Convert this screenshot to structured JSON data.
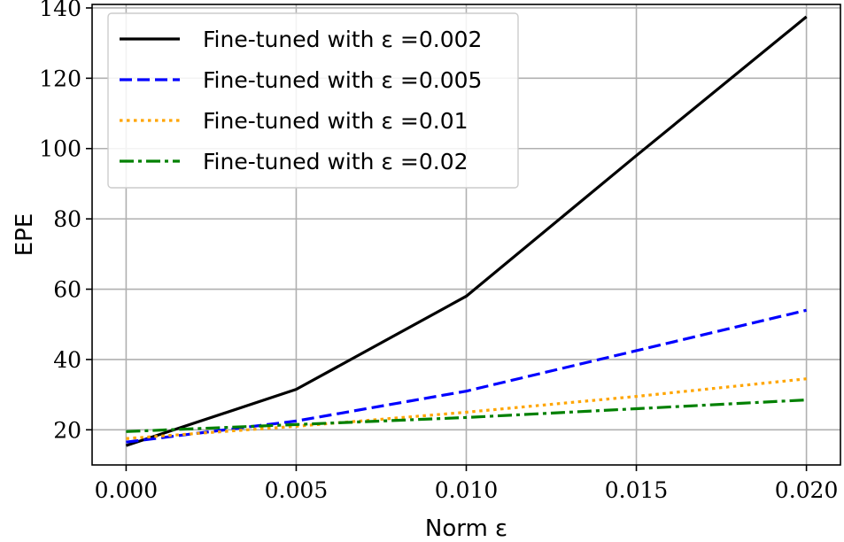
{
  "chart_data": {
    "type": "line",
    "xlabel": "Norm ε",
    "ylabel": "EPE",
    "x": [
      0.0,
      0.005,
      0.01,
      0.015,
      0.02
    ],
    "xlim": [
      -0.001,
      0.021
    ],
    "ylim": [
      10,
      141
    ],
    "xticks": [
      0.0,
      0.005,
      0.01,
      0.015,
      0.02
    ],
    "xtick_labels": [
      "0.000",
      "0.005",
      "0.010",
      "0.015",
      "0.020"
    ],
    "yticks": [
      20,
      40,
      60,
      80,
      100,
      120,
      140
    ],
    "ytick_labels": [
      "20",
      "40",
      "60",
      "80",
      "100",
      "120",
      "140"
    ],
    "grid": true,
    "legend_position": "top-left",
    "series": [
      {
        "name": "Fine-tuned with ε =0.002",
        "values": [
          15.5,
          31.5,
          58.0,
          98.0,
          137.5
        ],
        "color": "#000000",
        "style": "solid"
      },
      {
        "name": "Fine-tuned with ε =0.005",
        "values": [
          16.5,
          22.5,
          31.0,
          42.5,
          54.0
        ],
        "color": "#0000ff",
        "style": "dashed"
      },
      {
        "name": "Fine-tuned with ε =0.01",
        "values": [
          17.5,
          21.0,
          25.0,
          29.5,
          34.5
        ],
        "color": "#ffa500",
        "style": "dotted"
      },
      {
        "name": "Fine-tuned with ε =0.02",
        "values": [
          19.5,
          21.5,
          23.5,
          26.0,
          28.5
        ],
        "color": "#008000",
        "style": "dashdot"
      }
    ]
  }
}
